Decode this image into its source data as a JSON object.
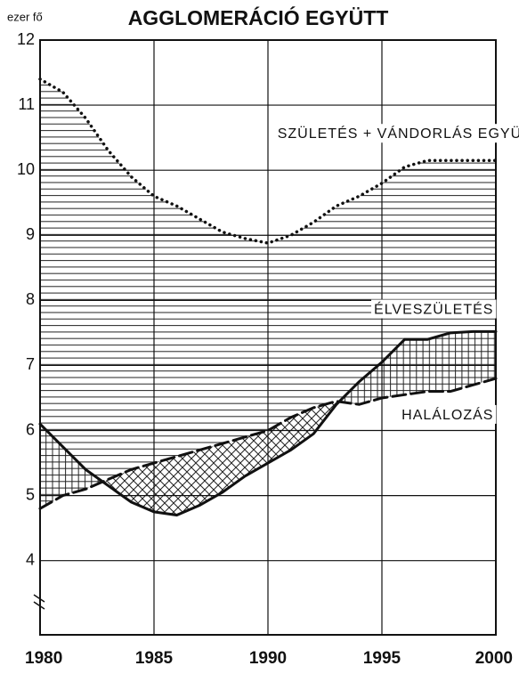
{
  "chart_data": {
    "type": "line",
    "title": "AGGLOMERÁCIÓ EGYÜTT",
    "y_label": "ezer fő",
    "x": [
      1980,
      1981,
      1982,
      1983,
      1984,
      1985,
      1986,
      1987,
      1988,
      1989,
      1990,
      1991,
      1992,
      1993,
      1994,
      1995,
      1996,
      1997,
      1998,
      1999,
      2000
    ],
    "series": [
      {
        "name": "SZÜLETÉS + VÁNDORLÁS EGYÜTT",
        "color": "#111111",
        "style": "dotted",
        "values": [
          11.4,
          11.2,
          10.8,
          10.3,
          9.9,
          9.6,
          9.45,
          9.25,
          9.05,
          8.95,
          8.88,
          9.0,
          9.2,
          9.45,
          9.6,
          9.8,
          10.05,
          10.15,
          10.15,
          10.15,
          10.15
        ]
      },
      {
        "name": "ÉLVESZÜLETÉS",
        "color": "#111111",
        "style": "solid",
        "values": [
          6.1,
          5.75,
          5.4,
          5.15,
          4.9,
          4.75,
          4.7,
          4.85,
          5.05,
          5.3,
          5.5,
          5.7,
          5.95,
          6.4,
          6.75,
          7.05,
          7.4,
          7.4,
          7.5,
          7.52,
          7.52
        ]
      },
      {
        "name": "HALÁLOZÁS",
        "color": "#111111",
        "style": "dashed",
        "values": [
          4.8,
          5.0,
          5.1,
          5.25,
          5.4,
          5.5,
          5.6,
          5.7,
          5.8,
          5.9,
          6.0,
          6.2,
          6.35,
          6.45,
          6.4,
          6.5,
          6.55,
          6.6,
          6.6,
          6.7,
          6.8
        ]
      }
    ],
    "xlim": [
      1980,
      2000
    ],
    "xticks": [
      1980,
      1985,
      1990,
      1995,
      2000
    ],
    "ylim": [
      2.86,
      12
    ],
    "yticks": [
      4,
      5,
      6,
      7,
      8,
      9,
      10,
      11,
      12
    ],
    "grid": true
  }
}
